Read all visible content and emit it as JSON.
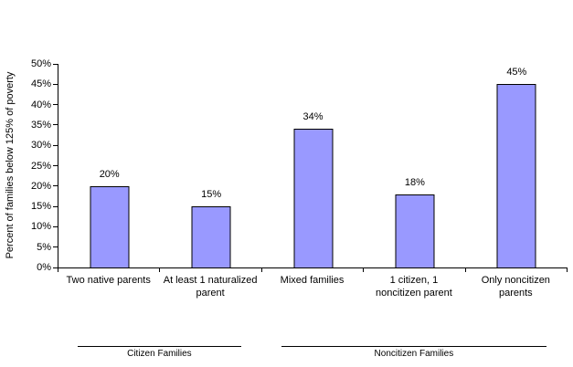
{
  "chart_data": {
    "type": "bar",
    "ylabel": "Percent of families below 125% of poverty",
    "ylim": [
      0,
      50
    ],
    "yticks": [
      0,
      5,
      10,
      15,
      20,
      25,
      30,
      35,
      40,
      45,
      50
    ],
    "ytick_labels": [
      "0%",
      "5%",
      "10%",
      "15%",
      "20%",
      "25%",
      "30%",
      "35%",
      "40%",
      "45%",
      "50%"
    ],
    "categories": [
      "Two native parents",
      "At least 1 naturalized parent",
      "Mixed families",
      "1 citizen, 1 noncitizen parent",
      "Only noncitizen parents"
    ],
    "values": [
      20,
      15,
      34,
      18,
      45
    ],
    "data_labels": [
      "20%",
      "15%",
      "34%",
      "18%",
      "45%"
    ],
    "bar_color": "#9999ff",
    "bar_border_color": "#000000",
    "grid": false,
    "legend": false,
    "groups": [
      {
        "label": "Citizen Families",
        "span": [
          0,
          1
        ]
      },
      {
        "label": "Noncitizen Families",
        "span": [
          2,
          4
        ]
      }
    ]
  }
}
